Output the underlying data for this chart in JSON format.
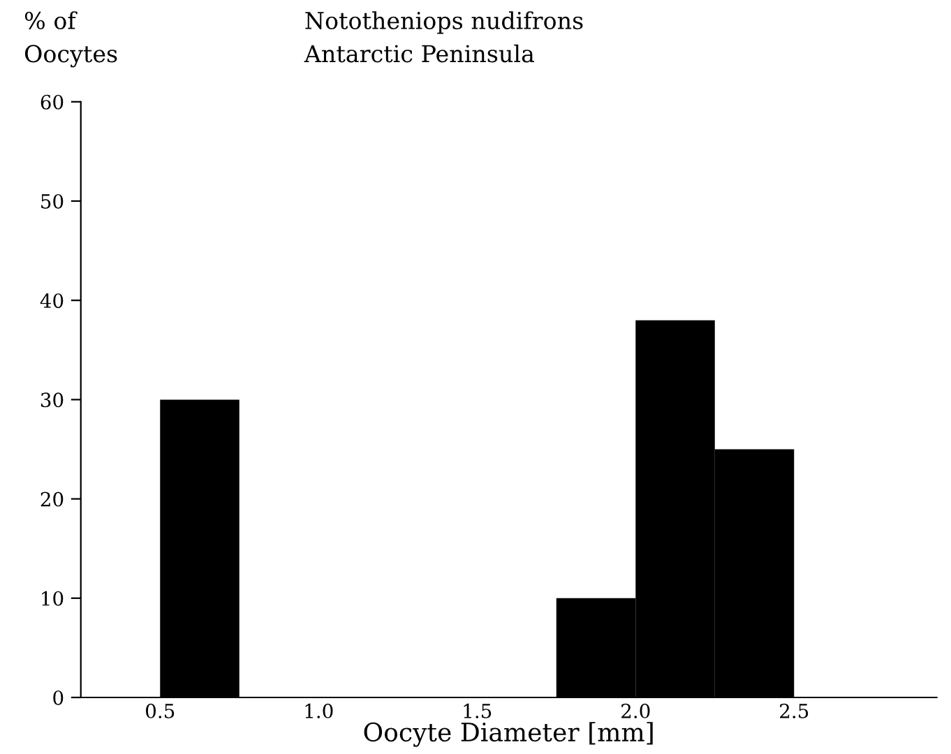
{
  "chart_data": {
    "type": "histogram",
    "title": "Nototheniops nudifrons\nAntarctic Peninsula",
    "ylabel": "% of\nOocytes",
    "xlabel": "Oocyte Diameter [mm]",
    "bins": [
      0.5,
      0.75,
      1.0,
      1.25,
      1.5,
      1.75,
      2.0,
      2.25,
      2.5
    ],
    "values": [
      30,
      0,
      0,
      0,
      0,
      10,
      38,
      25
    ],
    "color": "#000000",
    "xlim": [
      0.25,
      2.95
    ],
    "xticks": [
      0.5,
      {
        "value": 1,
        "label": "1.0"
      },
      1.5,
      {
        "value": 2,
        "label": "2.0"
      },
      2.5
    ],
    "ylim": [
      0,
      60
    ],
    "yticks": [
      0,
      10,
      20,
      30,
      40,
      50,
      60
    ],
    "grid": false
  }
}
